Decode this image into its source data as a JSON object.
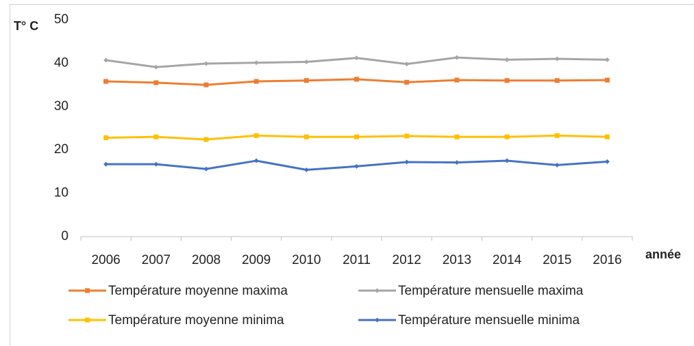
{
  "chart_data": {
    "type": "line",
    "y_label": "T° C",
    "x_label": "année",
    "categories": [
      "2006",
      "2007",
      "2008",
      "2009",
      "2010",
      "2011",
      "2012",
      "2013",
      "2014",
      "2015",
      "2016"
    ],
    "series": [
      {
        "name": "Température moyenne maxima",
        "color": "#ed7d31",
        "marker": "square",
        "values": [
          35.8,
          35.5,
          35.0,
          35.8,
          36.0,
          36.3,
          35.6,
          36.1,
          36.0,
          36.0,
          36.1
        ]
      },
      {
        "name": "Température mensuelle maxima",
        "color": "#a5a5a5",
        "marker": "diamond",
        "values": [
          40.7,
          39.1,
          39.9,
          40.1,
          40.3,
          41.2,
          39.8,
          41.3,
          40.8,
          41.0,
          40.8
        ]
      },
      {
        "name": "Température moyenne minima",
        "color": "#ffc000",
        "marker": "square",
        "values": [
          22.8,
          23.0,
          22.4,
          23.3,
          23.0,
          23.0,
          23.2,
          23.0,
          23.0,
          23.3,
          23.0
        ]
      },
      {
        "name": "Température mensuelle minima",
        "color": "#4472c4",
        "marker": "diamond",
        "values": [
          16.7,
          16.7,
          15.6,
          17.5,
          15.4,
          16.2,
          17.2,
          17.1,
          17.5,
          16.5,
          17.3
        ]
      }
    ],
    "ylim": [
      0,
      50
    ],
    "yticks": [
      0,
      10,
      20,
      30,
      40,
      50
    ],
    "grid": false,
    "legend": "bottom"
  }
}
